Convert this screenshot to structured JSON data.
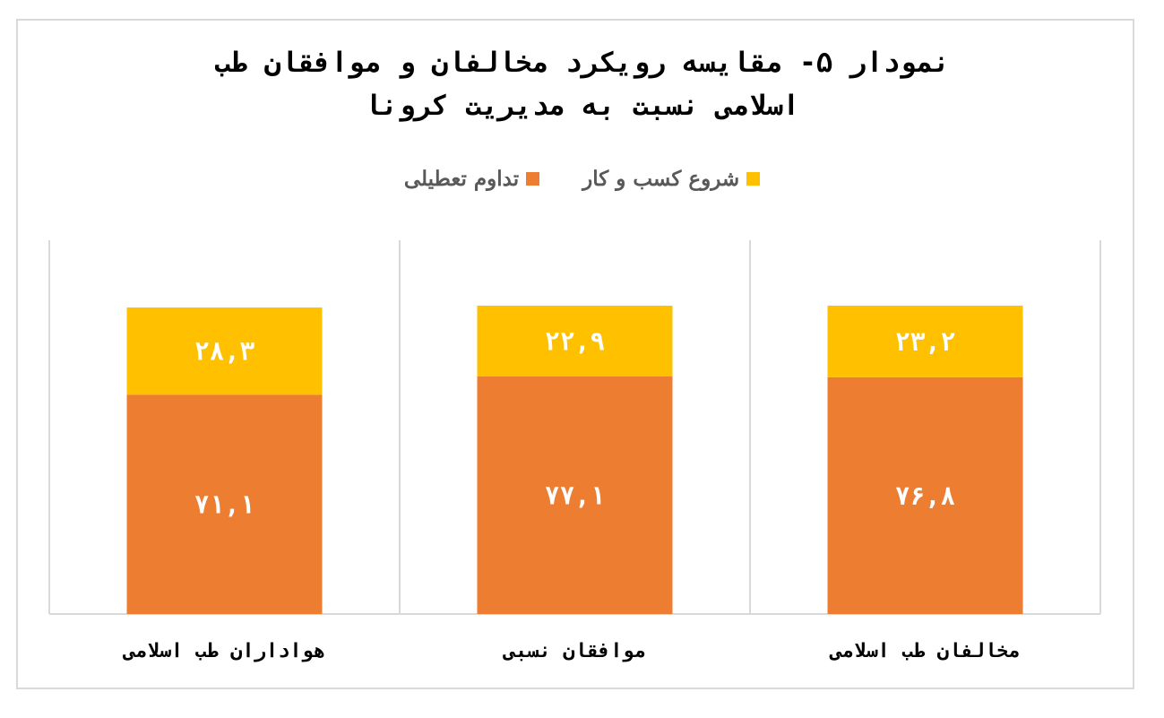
{
  "chart_data": {
    "type": "bar",
    "stacked": true,
    "title_lines": [
      "نمودار ۵- مقایسه رویکرد مخالفان و موافقان طب",
      "اسلامی نسبت به مدیریت کرونا"
    ],
    "categories": [
      "مخالفان طب اسلامی",
      "موافقان نسبی",
      "هواداران طب اسلامی"
    ],
    "series": [
      {
        "name": "تداوم تعطیلی",
        "color": "#ED7D31",
        "values": [
          76.8,
          77.1,
          71.1
        ],
        "labels": [
          "۷۶,۸",
          "۷۷,۱",
          "۷۱,۱"
        ]
      },
      {
        "name": "شروع کسب و کار",
        "color": "#FFC000",
        "values": [
          23.2,
          22.9,
          28.3
        ],
        "labels": [
          "۲۳,۲",
          "۲۲,۹",
          "۲۸,۳"
        ]
      }
    ],
    "legend_position": "top",
    "ylim": [
      0,
      100
    ],
    "grid": false
  }
}
